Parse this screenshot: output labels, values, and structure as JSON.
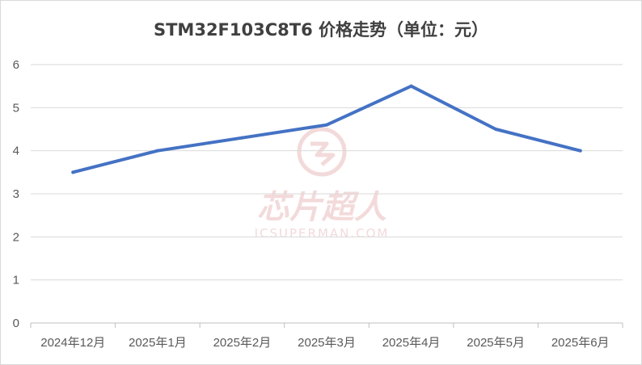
{
  "chart_data": {
    "type": "line",
    "title": "STM32F103C8T6 价格走势（单位：元）",
    "categories": [
      "2024年12月",
      "2025年1月",
      "2025年2月",
      "2025年3月",
      "2025年4月",
      "2025年5月",
      "2025年6月"
    ],
    "series": [
      {
        "values": [
          3.5,
          4.0,
          4.3,
          4.6,
          5.5,
          4.5,
          4.0
        ]
      }
    ],
    "ylim": [
      0,
      6
    ],
    "yticks": [
      0,
      1,
      2,
      3,
      4,
      5,
      6
    ],
    "grid": true,
    "legend": "none",
    "line_color": "#4472c4"
  },
  "watermark": {
    "text": "芯片超人",
    "subtext": "ICSUPERMAN.COM",
    "color": "#f3dada"
  }
}
